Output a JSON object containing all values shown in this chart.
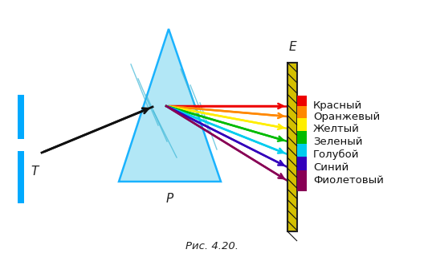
{
  "title": "Рис. 4.20.",
  "bg_color": "#ffffff",
  "slit_color": "#00aaff",
  "prism_face_color": "#a8e4f5",
  "prism_edge_color": "#00aaff",
  "wall_fg_color": "#d4c000",
  "wall_border": "#222222",
  "incident_ray_color": "#111111",
  "spectrum_colors": [
    "#ee0000",
    "#ff8800",
    "#ffee00",
    "#00bb00",
    "#00ccee",
    "#3300bb",
    "#880055"
  ],
  "spectrum_labels": [
    "Красный",
    "Оранжевый",
    "Желтый",
    "Зеленый",
    "Голубой",
    "Синий",
    "Фиолетовый"
  ],
  "label_T": "T",
  "label_P": "P",
  "label_E": "E"
}
